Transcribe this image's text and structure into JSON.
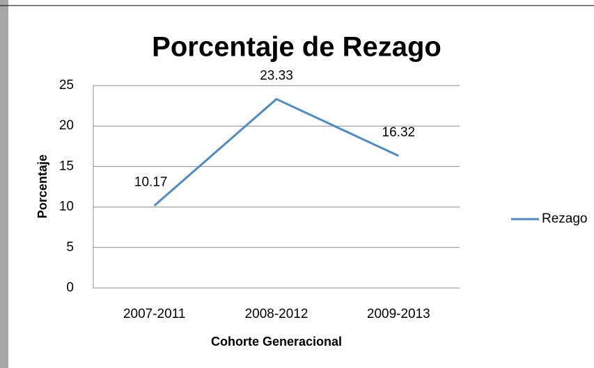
{
  "chart_data": {
    "type": "line",
    "title": "Porcentaje de Rezago",
    "categories": [
      "2007-2011",
      "2008-2012",
      "2009-2013"
    ],
    "series": [
      {
        "name": "Rezago",
        "color": "#4a8bc9",
        "values": [
          10.17,
          23.33,
          16.32
        ]
      }
    ],
    "ylim": [
      0,
      25
    ],
    "yticks": [
      0,
      5,
      10,
      15,
      20,
      25
    ],
    "grid": true,
    "xlabel": "Cohorte Generacional",
    "ylabel": "Porcentaje",
    "legend": "right"
  }
}
